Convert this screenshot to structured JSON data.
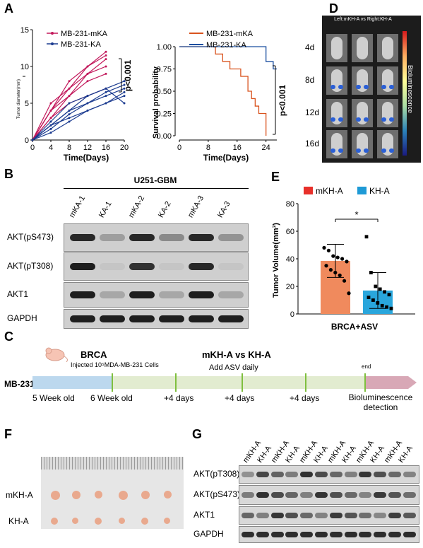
{
  "panels": {
    "A": "A",
    "B": "B",
    "C": "C",
    "D": "D",
    "E": "E",
    "F": "F",
    "G": "G"
  },
  "panelA_tumor": {
    "legend": [
      "MB-231-mKA",
      "MB-231-KA"
    ],
    "ylabel": "Tumor diameter(mm)",
    "xlabel": "Time(Days)",
    "xticks": [
      "0",
      "4",
      "8",
      "12",
      "16",
      "20"
    ],
    "yticks": [
      "0",
      "5",
      "10",
      "15"
    ],
    "pvalue": "p<0.001",
    "colors": {
      "mKA": "#c2185b",
      "KA": "#1a3a8f"
    }
  },
  "panelA_survival": {
    "legend": [
      "MB-231-mKA",
      "MB-231-KA"
    ],
    "ylabel": "Survival probability",
    "xlabel": "Time(Days)",
    "xticks": [
      "0",
      "8",
      "16",
      "24"
    ],
    "yticks": [
      "0.00",
      "0.25",
      "0.50",
      "0.75",
      "1.00"
    ],
    "pvalue": "p<0.001",
    "colors": {
      "mKA": "#d9531e",
      "KA": "#1a4fa0"
    }
  },
  "panelB": {
    "group": "U251-GBM",
    "lanes": [
      "mKA-1",
      "KA-1",
      "mKA-2",
      "KA-2",
      "mKA-3",
      "KA-3"
    ],
    "rows": [
      "AKT(pS473)",
      "AKT(pT308)",
      "AKT1",
      "GAPDH"
    ]
  },
  "panelC": {
    "cell_line": "MB-231",
    "brca": "BRCA",
    "injected": "Injected 10⁵MDA-MB-231 Cells",
    "title": "mKH-A vs KH-A",
    "subtitle": "Add ASV daily",
    "end": "end",
    "timeline": [
      "5 Week old",
      "6 Week old",
      "+4 days",
      "+4 days",
      "+4 days"
    ],
    "final": "Bioluminescence detection"
  },
  "panelD": {
    "title": "Left:mKH-A vs Right:KH-A",
    "rows": [
      "4d",
      "8d",
      "12d",
      "16d"
    ],
    "colorbar_label": "Bioluminescence"
  },
  "panelE": {
    "legend": [
      "mKH-A",
      "KH-A"
    ],
    "ylabel": "Tumor Volume(mm³)",
    "xlabel": "BRCA+ASV",
    "yticks": [
      "0",
      "20",
      "40",
      "60",
      "80"
    ],
    "significance": "*",
    "colors": {
      "mKH-A": "#e8302a",
      "KH-A": "#1e9ad6"
    }
  },
  "panelF": {
    "rows": [
      "mKH-A",
      "KH-A"
    ]
  },
  "panelG": {
    "lanes": [
      "mKH-A",
      "KH-A",
      "mKH-A",
      "KH-A",
      "mKH-A",
      "KH-A",
      "mKH-A",
      "KH-A",
      "mKH-A",
      "KH-A",
      "mKH-A",
      "KH-A"
    ],
    "rows": [
      "AKT(pT308)",
      "AKT(pS473)",
      "AKT1",
      "GAPDH"
    ]
  },
  "chart_data": [
    {
      "type": "line",
      "title": "",
      "xlabel": "Time(Days)",
      "ylabel": "Tumor diameter(mm)",
      "xlim": [
        0,
        20
      ],
      "ylim": [
        0,
        15
      ],
      "series": [
        {
          "name": "MB-231-mKA",
          "lines": [
            [
              [
                0,
                0
              ],
              [
                4,
                4
              ],
              [
                8,
                8
              ],
              [
                12,
                10
              ],
              [
                16,
                12
              ]
            ],
            [
              [
                0,
                0
              ],
              [
                4,
                5
              ],
              [
                8,
                7
              ],
              [
                12,
                9
              ],
              [
                16,
                11
              ]
            ],
            [
              [
                0,
                0
              ],
              [
                4,
                3
              ],
              [
                8,
                6
              ],
              [
                12,
                9
              ],
              [
                16,
                10
              ]
            ],
            [
              [
                0,
                0
              ],
              [
                4,
                4
              ],
              [
                8,
                6
              ],
              [
                12,
                8
              ],
              [
                16,
                9
              ]
            ],
            [
              [
                0,
                0
              ],
              [
                4,
                3
              ],
              [
                8,
                5
              ],
              [
                12,
                6
              ],
              [
                16,
                7
              ]
            ],
            [
              [
                0,
                0
              ],
              [
                4,
                4
              ],
              [
                8,
                7
              ],
              [
                12,
                10
              ],
              [
                16,
                11.5
              ]
            ]
          ]
        },
        {
          "name": "MB-231-KA",
          "lines": [
            [
              [
                0,
                0
              ],
              [
                4,
                2
              ],
              [
                8,
                4
              ],
              [
                12,
                5
              ],
              [
                16,
                6
              ],
              [
                20,
                7
              ]
            ],
            [
              [
                0,
                0
              ],
              [
                4,
                2
              ],
              [
                8,
                3
              ],
              [
                12,
                4
              ],
              [
                16,
                5
              ],
              [
                20,
                6
              ]
            ],
            [
              [
                0,
                0
              ],
              [
                4,
                1
              ],
              [
                8,
                2.5
              ],
              [
                12,
                4
              ],
              [
                16,
                5
              ],
              [
                20,
                6.5
              ]
            ],
            [
              [
                0,
                0
              ],
              [
                4,
                2
              ],
              [
                8,
                4
              ],
              [
                12,
                6
              ],
              [
                16,
                7
              ],
              [
                20,
                8
              ]
            ],
            [
              [
                0,
                0
              ],
              [
                4,
                1.5
              ],
              [
                8,
                3.5
              ],
              [
                12,
                5
              ],
              [
                16,
                6.5
              ],
              [
                20,
                7.5
              ]
            ],
            [
              [
                0,
                0
              ],
              [
                4,
                2.5
              ],
              [
                8,
                5
              ],
              [
                12,
                6
              ],
              [
                16,
                7
              ],
              [
                20,
                5
              ]
            ]
          ]
        }
      ]
    },
    {
      "type": "line",
      "title": "",
      "xlabel": "Time(Days)",
      "ylabel": "Survival probability",
      "xlim": [
        0,
        27
      ],
      "ylim": [
        0,
        1
      ],
      "series": [
        {
          "name": "MB-231-mKA",
          "steps": [
            [
              0,
              1.0
            ],
            [
              10,
              1.0
            ],
            [
              10,
              0.917
            ],
            [
              12,
              0.917
            ],
            [
              12,
              0.833
            ],
            [
              14,
              0.833
            ],
            [
              14,
              0.75
            ],
            [
              17,
              0.75
            ],
            [
              17,
              0.667
            ],
            [
              19,
              0.667
            ],
            [
              19,
              0.5
            ],
            [
              20,
              0.5
            ],
            [
              20,
              0.417
            ],
            [
              21,
              0.417
            ],
            [
              21,
              0.333
            ],
            [
              22,
              0.333
            ],
            [
              22,
              0.25
            ],
            [
              24,
              0.25
            ],
            [
              24,
              0.0
            ]
          ]
        },
        {
          "name": "MB-231-KA",
          "steps": [
            [
              0,
              1.0
            ],
            [
              24,
              1.0
            ],
            [
              24,
              0.833
            ],
            [
              26,
              0.833
            ],
            [
              26,
              0.75
            ],
            [
              27,
              0.75
            ]
          ]
        }
      ]
    },
    {
      "type": "bar",
      "title": "",
      "xlabel": "BRCA+ASV",
      "ylabel": "Tumor Volume(mm³)",
      "ylim": [
        0,
        80
      ],
      "categories": [
        "mKH-A",
        "KH-A"
      ],
      "values": [
        38.5,
        17
      ],
      "errors": [
        12,
        13
      ],
      "points": [
        [
          48,
          46,
          42,
          41,
          40,
          38,
          35,
          32,
          30,
          28,
          24,
          15
        ],
        [
          56,
          30,
          20,
          18,
          16,
          14,
          12,
          10,
          8,
          6,
          5,
          4
        ]
      ]
    }
  ]
}
